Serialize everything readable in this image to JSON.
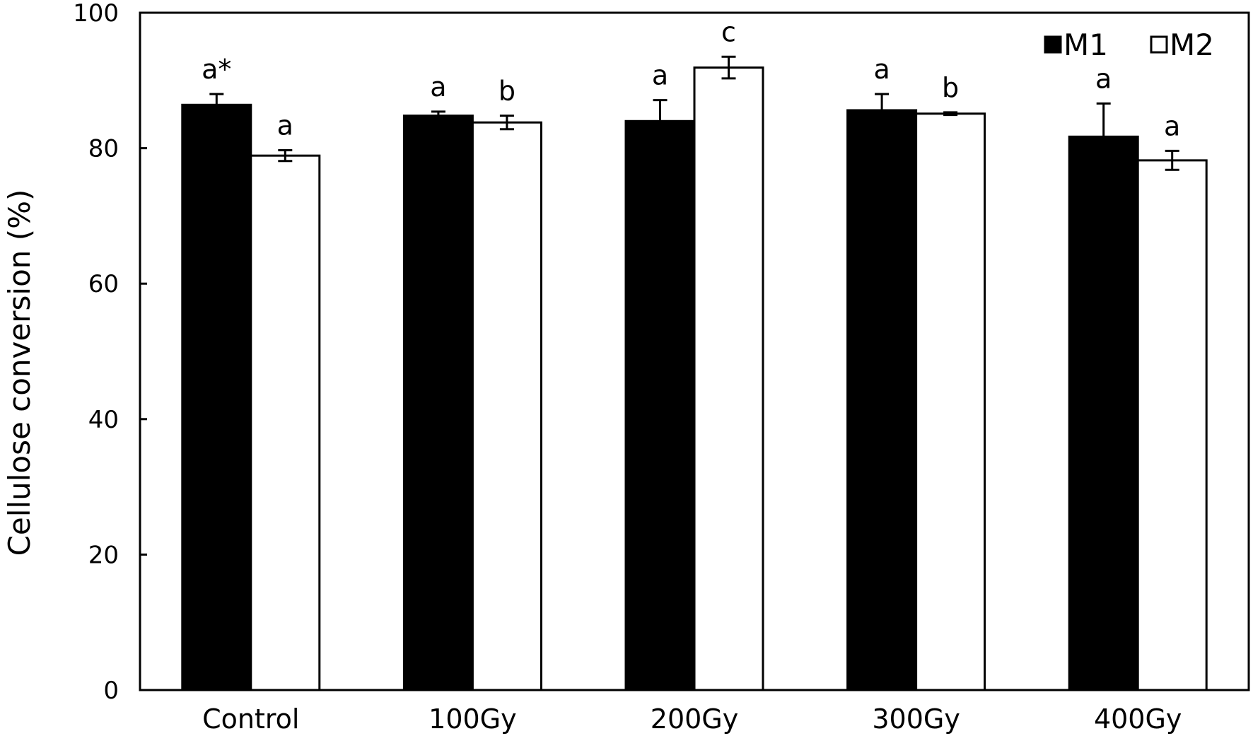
{
  "chart_data": {
    "type": "bar",
    "title": "",
    "xlabel": "",
    "ylabel": "Cellulose conversion (%)",
    "ylim": [
      0,
      100
    ],
    "yticks": [
      0,
      20,
      40,
      60,
      80,
      100
    ],
    "categories": [
      "Control",
      "100Gy",
      "200Gy",
      "300Gy",
      "400Gy"
    ],
    "series": [
      {
        "name": "M1",
        "color": "#000000",
        "values": [
          86.4,
          84.8,
          84.0,
          85.6,
          81.7
        ],
        "errors": [
          1.6,
          0.6,
          3.1,
          2.4,
          4.9
        ],
        "labels": [
          "a*",
          "a",
          "a",
          "a",
          "a"
        ]
      },
      {
        "name": "M2",
        "color": "#ffffff",
        "values": [
          78.9,
          83.8,
          91.9,
          85.1,
          78.2
        ],
        "errors": [
          0.8,
          1.0,
          1.6,
          0.2,
          1.4
        ],
        "labels": [
          "a",
          "b",
          "c",
          "b",
          "a"
        ]
      }
    ],
    "legend": {
      "position": "top-right"
    },
    "grid": false
  }
}
